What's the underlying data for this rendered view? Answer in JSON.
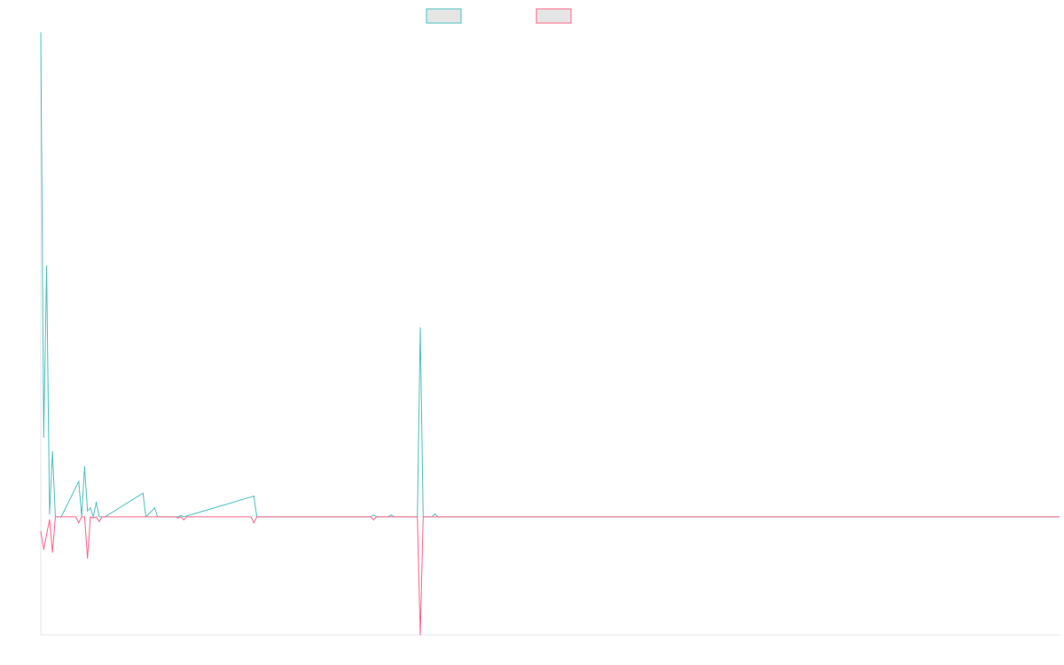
{
  "chart_data": {
    "type": "line",
    "x_count": 350,
    "ylim": [
      -20,
      82
    ],
    "grid": false,
    "legend_position": "top-center",
    "series": [
      {
        "name": "",
        "color": "#4bc0c0",
        "fill": "#e5e5e5",
        "points": [
          [
            0,
            82
          ],
          [
            1,
            13.5
          ],
          [
            2,
            42.5
          ],
          [
            3,
            0.5
          ],
          [
            4,
            11
          ],
          [
            5,
            0
          ],
          [
            6,
            0
          ],
          [
            7,
            0
          ],
          [
            13,
            6
          ],
          [
            14,
            0
          ],
          [
            15,
            8.5
          ],
          [
            16,
            1
          ],
          [
            17,
            1.5
          ],
          [
            18,
            0
          ],
          [
            19,
            2.5
          ],
          [
            20,
            0
          ],
          [
            21,
            0
          ],
          [
            22,
            0
          ],
          [
            35,
            4
          ],
          [
            36,
            0
          ],
          [
            39,
            1.5
          ],
          [
            40,
            0
          ],
          [
            47,
            0
          ],
          [
            48,
            0.2
          ],
          [
            49,
            0
          ],
          [
            73,
            3.5
          ],
          [
            74,
            0
          ],
          [
            113,
            0
          ],
          [
            114,
            0.3
          ],
          [
            115,
            0
          ],
          [
            119,
            0
          ],
          [
            120,
            0.3
          ],
          [
            121,
            0
          ],
          [
            129,
            0
          ],
          [
            130,
            32
          ],
          [
            131,
            0
          ],
          [
            134,
            0
          ],
          [
            135,
            0.5
          ],
          [
            136,
            0
          ],
          [
            349,
            0
          ]
        ]
      },
      {
        "name": "",
        "color": "#ff6384",
        "fill": "#e5e5e5",
        "points": [
          [
            0,
            -2.5
          ],
          [
            1,
            -5.5
          ],
          [
            2,
            -3
          ],
          [
            3,
            -0.5
          ],
          [
            4,
            -6
          ],
          [
            5,
            0
          ],
          [
            6,
            0
          ],
          [
            12,
            0
          ],
          [
            13,
            -1
          ],
          [
            14,
            0
          ],
          [
            15,
            0
          ],
          [
            16,
            -7
          ],
          [
            17,
            0
          ],
          [
            18,
            -0.2
          ],
          [
            19,
            0
          ],
          [
            20,
            -0.8
          ],
          [
            21,
            0
          ],
          [
            22,
            0
          ],
          [
            46,
            0
          ],
          [
            47,
            -0.2
          ],
          [
            48,
            0
          ],
          [
            49,
            -0.5
          ],
          [
            50,
            0
          ],
          [
            72,
            0
          ],
          [
            73,
            -1
          ],
          [
            74,
            0
          ],
          [
            113,
            0
          ],
          [
            114,
            -0.5
          ],
          [
            115,
            0
          ],
          [
            129,
            0
          ],
          [
            130,
            -20
          ],
          [
            131,
            0
          ],
          [
            349,
            0
          ]
        ]
      }
    ]
  }
}
